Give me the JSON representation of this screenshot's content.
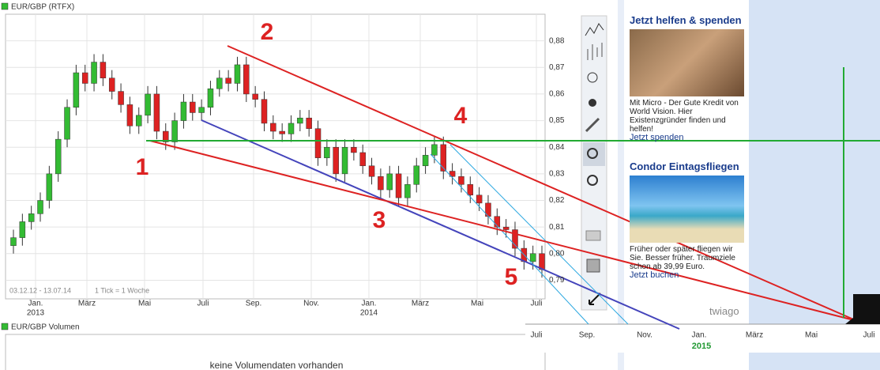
{
  "chart_data": {
    "type": "candlestick",
    "title": "EUR/GBP (RTFX)",
    "period": "03.12.12 - 13.07.14",
    "tick_note": "1 Tick = 1 Woche",
    "open": [
      0.803,
      0.806,
      0.812,
      0.815,
      0.82,
      0.83,
      0.843,
      0.855,
      0.868,
      0.864,
      0.872,
      0.866,
      0.861,
      0.856,
      0.848,
      0.852,
      0.86,
      0.846,
      0.842,
      0.85,
      0.857,
      0.853,
      0.855,
      0.862,
      0.866,
      0.864,
      0.871,
      0.86,
      0.858,
      0.849,
      0.846,
      0.845,
      0.849,
      0.851,
      0.847,
      0.836,
      0.84,
      0.83,
      0.84,
      0.838,
      0.833,
      0.829,
      0.824,
      0.83,
      0.821,
      0.826,
      0.833,
      0.837,
      0.841,
      0.831,
      0.829,
      0.826,
      0.822,
      0.819,
      0.814,
      0.81,
      0.809,
      0.802,
      0.797,
      0.8
    ],
    "high": [
      0.809,
      0.815,
      0.818,
      0.823,
      0.833,
      0.846,
      0.858,
      0.871,
      0.871,
      0.875,
      0.875,
      0.869,
      0.864,
      0.859,
      0.855,
      0.863,
      0.863,
      0.849,
      0.853,
      0.86,
      0.86,
      0.858,
      0.865,
      0.869,
      0.869,
      0.874,
      0.874,
      0.863,
      0.861,
      0.852,
      0.849,
      0.852,
      0.854,
      0.854,
      0.85,
      0.843,
      0.843,
      0.843,
      0.843,
      0.841,
      0.836,
      0.832,
      0.833,
      0.833,
      0.829,
      0.836,
      0.84,
      0.844,
      0.844,
      0.834,
      0.832,
      0.829,
      0.825,
      0.822,
      0.817,
      0.813,
      0.812,
      0.805,
      0.803,
      0.803
    ],
    "low": [
      0.8,
      0.803,
      0.809,
      0.812,
      0.817,
      0.827,
      0.84,
      0.852,
      0.861,
      0.861,
      0.863,
      0.858,
      0.853,
      0.845,
      0.845,
      0.849,
      0.843,
      0.839,
      0.839,
      0.847,
      0.85,
      0.85,
      0.852,
      0.859,
      0.861,
      0.861,
      0.857,
      0.855,
      0.846,
      0.843,
      0.842,
      0.842,
      0.846,
      0.844,
      0.833,
      0.833,
      0.827,
      0.827,
      0.835,
      0.83,
      0.826,
      0.821,
      0.821,
      0.818,
      0.818,
      0.823,
      0.83,
      0.834,
      0.828,
      0.826,
      0.823,
      0.819,
      0.816,
      0.811,
      0.807,
      0.806,
      0.799,
      0.794,
      0.794,
      0.791
    ],
    "close": [
      0.806,
      0.812,
      0.815,
      0.82,
      0.83,
      0.843,
      0.855,
      0.868,
      0.864,
      0.872,
      0.866,
      0.861,
      0.856,
      0.848,
      0.852,
      0.86,
      0.846,
      0.842,
      0.85,
      0.857,
      0.853,
      0.855,
      0.862,
      0.866,
      0.864,
      0.871,
      0.86,
      0.858,
      0.849,
      0.846,
      0.845,
      0.849,
      0.851,
      0.847,
      0.836,
      0.84,
      0.83,
      0.84,
      0.838,
      0.833,
      0.829,
      0.824,
      0.83,
      0.821,
      0.826,
      0.833,
      0.837,
      0.841,
      0.831,
      0.829,
      0.826,
      0.822,
      0.819,
      0.814,
      0.81,
      0.809,
      0.802,
      0.797,
      0.8,
      0.794
    ],
    "up_color": "#33bb33",
    "down_color": "#dd2222",
    "grid": true,
    "ylim": [
      0.783,
      0.89
    ],
    "yticks": [
      {
        "value": 0.79,
        "label": "0,79"
      },
      {
        "value": 0.8,
        "label": "0,80"
      },
      {
        "value": 0.81,
        "label": "0,81"
      },
      {
        "value": 0.82,
        "label": "0,82"
      },
      {
        "value": 0.83,
        "label": "0,83"
      },
      {
        "value": 0.84,
        "label": "0,84"
      },
      {
        "value": 0.85,
        "label": "0,85"
      },
      {
        "value": 0.86,
        "label": "0,86"
      },
      {
        "value": 0.87,
        "label": "0,87"
      },
      {
        "value": 0.88,
        "label": "0,88"
      }
    ],
    "x_labels": [
      "Jan.",
      "März",
      "Mai",
      "Juli",
      "Sep.",
      "Nov.",
      "Jan.",
      "März",
      "Mai",
      "Juli"
    ],
    "year_labels": [
      "2013",
      "2014"
    ],
    "extended_x_labels": [
      "Juli",
      "Sep.",
      "Nov.",
      "Jan.",
      "März",
      "Mai",
      "Juli"
    ],
    "extended_year_label": "2015",
    "annotations": [
      "1",
      "2",
      "3",
      "4",
      "5"
    ]
  },
  "volume": {
    "title": "EUR/GBP Volumen",
    "message": "keine Volumendaten vorhanden"
  },
  "ads": [
    {
      "title": "Jetzt helfen & spenden",
      "text": "Mit Micro - Der Gute Kredit von World Vision. Hier Existenzgründer finden und helfen!",
      "link": "Jetzt spenden"
    },
    {
      "title": "Condor Eintagsfliegen",
      "text": "Früher oder später fliegen wir Sie. Besser früher. Traumziele schon ab 39,99 Euro.",
      "link": "Jetzt buchen"
    }
  ],
  "ad_brand": "twiago"
}
